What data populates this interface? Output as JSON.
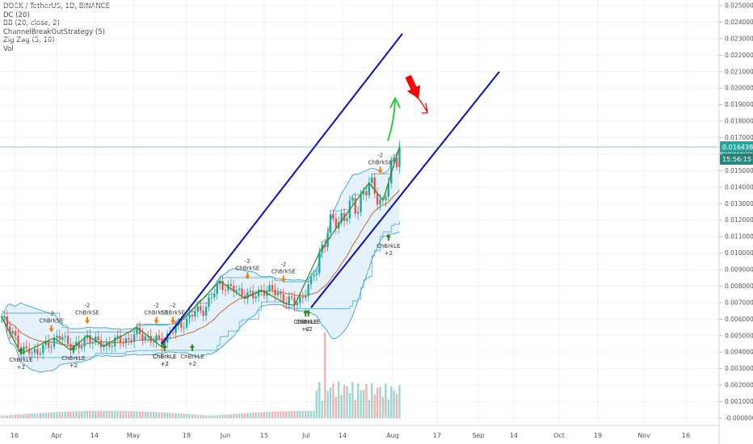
{
  "legend": {
    "title": "DOCK / TetherUS, 1D, BINANCE",
    "indicators": [
      "DC (20)",
      "BB (20, close, 2)",
      "ChannelBreakOutStrategy (5)",
      "Zig Zag (5, 10)",
      "Vol"
    ]
  },
  "price_label": {
    "value": "0.016438",
    "countdown": "15:56:15",
    "price": 0.016438
  },
  "colors": {
    "up": "#26a69a",
    "down": "#ef5350",
    "channel": "#0d0dbf",
    "bb_fill": "#cfe8f7",
    "bb_line": "#3aa0c8",
    "zigzag": "#2e8b1f",
    "ma": "#c25a1e",
    "arrow_up": "#2ecc40",
    "arrow_down": "#ff0000",
    "price_line": "#26a69a"
  },
  "chart_data": {
    "type": "candlestick",
    "y_ticks": [
      "0.025000",
      "0.024000",
      "0.023000",
      "0.022000",
      "0.021000",
      "0.020000",
      "0.019000",
      "0.018000",
      "0.017000",
      "0.016000",
      "0.015000",
      "0.014000",
      "0.013000",
      "0.012000",
      "0.011000",
      "0.010000",
      "0.009000",
      "0.008000",
      "0.007000",
      "0.006000",
      "0.005000",
      "0.004000",
      "0.003000",
      "0.002000",
      "0.001000",
      "-0.000000"
    ],
    "ylim": [
      0,
      0.025
    ],
    "x_ticks": [
      "16",
      "Apr",
      "14",
      "May",
      "18",
      "Jun",
      "15",
      "Jul",
      "14",
      "Aug",
      "17",
      "Sep",
      "14",
      "Oct",
      "19",
      "Nov",
      "16"
    ],
    "signals": [
      {
        "text": "ChBrkLE",
        "sub": "+2",
        "side": "long",
        "price": 0.0043
      },
      {
        "text": "ChBrkLE",
        "sub": "+2",
        "side": "long",
        "price": 0.0044
      },
      {
        "text": "ChBrkSE",
        "sub": "-2",
        "side": "short",
        "price": 0.0052
      },
      {
        "text": "ChBrkSE",
        "sub": "-2",
        "side": "short",
        "price": 0.0057
      },
      {
        "text": "ChBrkLE",
        "sub": "+2",
        "side": "long",
        "price": 0.0045
      },
      {
        "text": "ChBrkSE",
        "sub": "-2",
        "side": "short",
        "price": 0.0057
      },
      {
        "text": "ChBrkSE",
        "sub": "-2",
        "side": "short",
        "price": 0.0057
      },
      {
        "text": "ChBrkLE",
        "sub": "+2",
        "side": "long",
        "price": 0.0045
      },
      {
        "text": "ChBrkLE",
        "sub": "+2",
        "side": "long",
        "price": 0.0045
      },
      {
        "text": "ChBrkSE",
        "sub": "-2",
        "side": "short",
        "price": 0.0084
      },
      {
        "text": "ChBrkSE",
        "sub": "-2",
        "side": "short",
        "price": 0.0082
      },
      {
        "text": "ChBrkLE",
        "sub": "+2",
        "side": "long",
        "price": 0.0066
      },
      {
        "text": "ChBrkLE",
        "sub": "+2",
        "side": "long",
        "price": 0.0066
      },
      {
        "text": "ChBrkSE",
        "sub": "-2",
        "side": "short",
        "price": 0.0148
      },
      {
        "text": "ChBrkLE",
        "sub": "+2",
        "side": "long",
        "price": 0.0112
      }
    ]
  }
}
